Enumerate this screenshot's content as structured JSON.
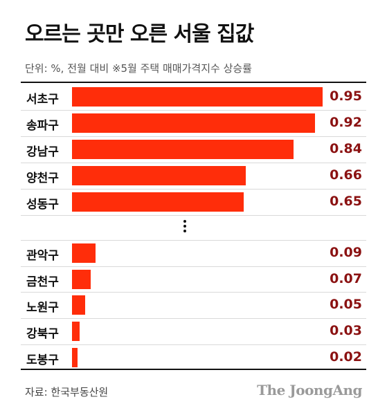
{
  "title": "오르는 곳만 오른 서울 집값",
  "subtitle": "단위: %, 전월 대비  ※5월 주택 매매가격지수 상승률",
  "source": "자료: 한국부동산원",
  "brand": "The JoongAng",
  "colors": {
    "bar": "#ff2d0a",
    "value": "#8b1212"
  },
  "chart_data": {
    "type": "bar",
    "orientation": "horizontal",
    "title": "오르는 곳만 오른 서울 집값",
    "subtitle": "단위: %, 전월 대비  ※5월 주택 매매가격지수 상승률",
    "categories": [
      "서초구",
      "송파구",
      "강남구",
      "양천구",
      "성동구",
      "관악구",
      "금천구",
      "노원구",
      "강북구",
      "도봉구"
    ],
    "values": [
      0.95,
      0.92,
      0.84,
      0.66,
      0.65,
      0.09,
      0.07,
      0.05,
      0.03,
      0.02
    ],
    "value_labels": [
      "0.95",
      "0.92",
      "0.84",
      "0.66",
      "0.65",
      "0.09",
      "0.07",
      "0.05",
      "0.03",
      "0.02"
    ],
    "xlim": [
      0,
      0.95
    ],
    "grid": false,
    "legend": "none"
  }
}
